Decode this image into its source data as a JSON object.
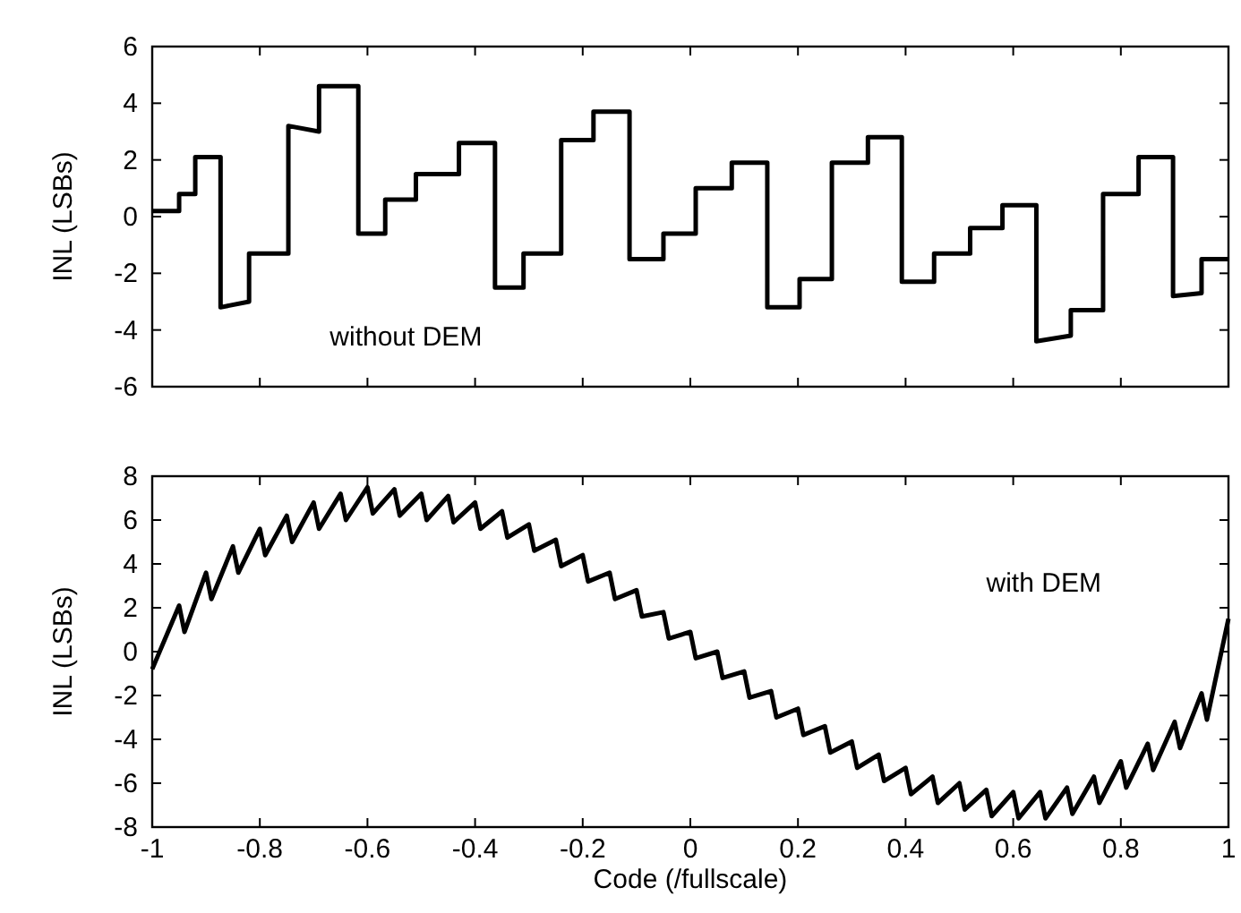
{
  "chart_data": [
    {
      "type": "line",
      "ylabel": "INL (LSBs)",
      "annotations": [
        "without DEM"
      ],
      "xlim": [
        -1,
        1
      ],
      "ylim": [
        -6,
        6
      ],
      "xticks": [
        -1,
        -0.8,
        -0.6,
        -0.4,
        -0.2,
        0,
        0.2,
        0.4,
        0.6,
        0.8,
        1
      ],
      "yticks": [
        -6,
        -4,
        -2,
        0,
        2,
        4,
        6
      ],
      "tick_labels": "y",
      "grid": false,
      "marker": "none",
      "line_style": "solid",
      "series": [
        {
          "color": "#000000",
          "x": [
            -1,
            -0.95,
            -0.95,
            -0.92,
            -0.92,
            -0.873,
            -0.873,
            -0.82,
            -0.82,
            -0.747,
            -0.747,
            -0.69,
            -0.69,
            -0.617,
            -0.617,
            -0.567,
            -0.567,
            -0.51,
            -0.51,
            -0.43,
            -0.43,
            -0.363,
            -0.363,
            -0.31,
            -0.31,
            -0.24,
            -0.24,
            -0.18,
            -0.18,
            -0.113,
            -0.113,
            -0.05,
            -0.05,
            0.01,
            0.01,
            0.077,
            0.077,
            0.143,
            0.143,
            0.203,
            0.203,
            0.263,
            0.263,
            0.33,
            0.33,
            0.393,
            0.393,
            0.453,
            0.453,
            0.52,
            0.52,
            0.58,
            0.58,
            0.643,
            0.643,
            0.707,
            0.707,
            0.767,
            0.767,
            0.833,
            0.833,
            0.897,
            0.897,
            0.95,
            0.95,
            1
          ],
          "values": [
            0.2,
            0.2,
            0.8,
            0.8,
            2.1,
            2.1,
            -3.2,
            -3.0,
            -1.3,
            -1.3,
            3.2,
            3.0,
            4.6,
            4.6,
            -0.6,
            -0.6,
            0.6,
            0.6,
            1.5,
            1.5,
            2.6,
            2.6,
            -2.5,
            -2.5,
            -1.3,
            -1.3,
            2.7,
            2.7,
            3.7,
            3.7,
            -1.5,
            -1.5,
            -0.6,
            -0.6,
            1.0,
            1.0,
            1.9,
            1.9,
            -3.2,
            -3.2,
            -2.2,
            -2.2,
            1.9,
            1.9,
            2.8,
            2.8,
            -2.3,
            -2.3,
            -1.3,
            -1.3,
            -0.4,
            -0.4,
            0.4,
            0.4,
            -4.4,
            -4.2,
            -3.3,
            -3.3,
            0.8,
            0.8,
            2.1,
            2.1,
            -2.8,
            -2.7,
            -1.5,
            -1.5
          ]
        }
      ]
    },
    {
      "type": "line",
      "xlabel": "Code (/fullscale)",
      "ylabel": "INL (LSBs)",
      "annotations": [
        "with DEM"
      ],
      "xlim": [
        -1,
        1
      ],
      "ylim": [
        -8,
        8
      ],
      "xticks": [
        -1,
        -0.8,
        -0.6,
        -0.4,
        -0.2,
        0,
        0.2,
        0.4,
        0.6,
        0.8,
        1
      ],
      "yticks": [
        -8,
        -6,
        -4,
        -2,
        0,
        2,
        4,
        6,
        8
      ],
      "grid": false,
      "marker": "none",
      "line_style": "solid",
      "series": [
        {
          "color": "#000000",
          "x": [
            -1,
            -0.95,
            -0.94,
            -0.9,
            -0.89,
            -0.85,
            -0.84,
            -0.8,
            -0.79,
            -0.75,
            -0.74,
            -0.7,
            -0.69,
            -0.65,
            -0.64,
            -0.6,
            -0.59,
            -0.55,
            -0.54,
            -0.5,
            -0.49,
            -0.45,
            -0.44,
            -0.4,
            -0.39,
            -0.35,
            -0.34,
            -0.3,
            -0.29,
            -0.25,
            -0.24,
            -0.2,
            -0.19,
            -0.15,
            -0.14,
            -0.1,
            -0.09,
            -0.05,
            -0.04,
            0,
            0.01,
            0.05,
            0.06,
            0.1,
            0.11,
            0.15,
            0.16,
            0.2,
            0.21,
            0.25,
            0.26,
            0.3,
            0.31,
            0.35,
            0.36,
            0.4,
            0.41,
            0.45,
            0.46,
            0.5,
            0.51,
            0.55,
            0.56,
            0.6,
            0.61,
            0.65,
            0.66,
            0.7,
            0.71,
            0.75,
            0.76,
            0.8,
            0.81,
            0.85,
            0.86,
            0.9,
            0.91,
            0.95,
            0.96,
            1
          ],
          "values": [
            -0.8,
            2.1,
            0.9,
            3.6,
            2.4,
            4.8,
            3.6,
            5.6,
            4.4,
            6.2,
            5.0,
            6.8,
            5.6,
            7.2,
            6.0,
            7.5,
            6.3,
            7.4,
            6.2,
            7.2,
            6.0,
            7.1,
            5.9,
            6.8,
            5.6,
            6.4,
            5.2,
            5.8,
            4.6,
            5.1,
            3.9,
            4.4,
            3.2,
            3.6,
            2.4,
            2.8,
            1.6,
            1.8,
            0.6,
            0.9,
            -0.3,
            0.0,
            -1.2,
            -0.9,
            -2.1,
            -1.8,
            -3.0,
            -2.6,
            -3.8,
            -3.4,
            -4.6,
            -4.1,
            -5.3,
            -4.7,
            -5.9,
            -5.3,
            -6.5,
            -5.7,
            -6.9,
            -6.0,
            -7.2,
            -6.3,
            -7.5,
            -6.4,
            -7.6,
            -6.4,
            -7.6,
            -6.2,
            -7.4,
            -5.7,
            -6.9,
            -5.0,
            -6.2,
            -4.2,
            -5.4,
            -3.2,
            -4.4,
            -1.9,
            -3.1,
            1.5
          ]
        }
      ]
    }
  ]
}
